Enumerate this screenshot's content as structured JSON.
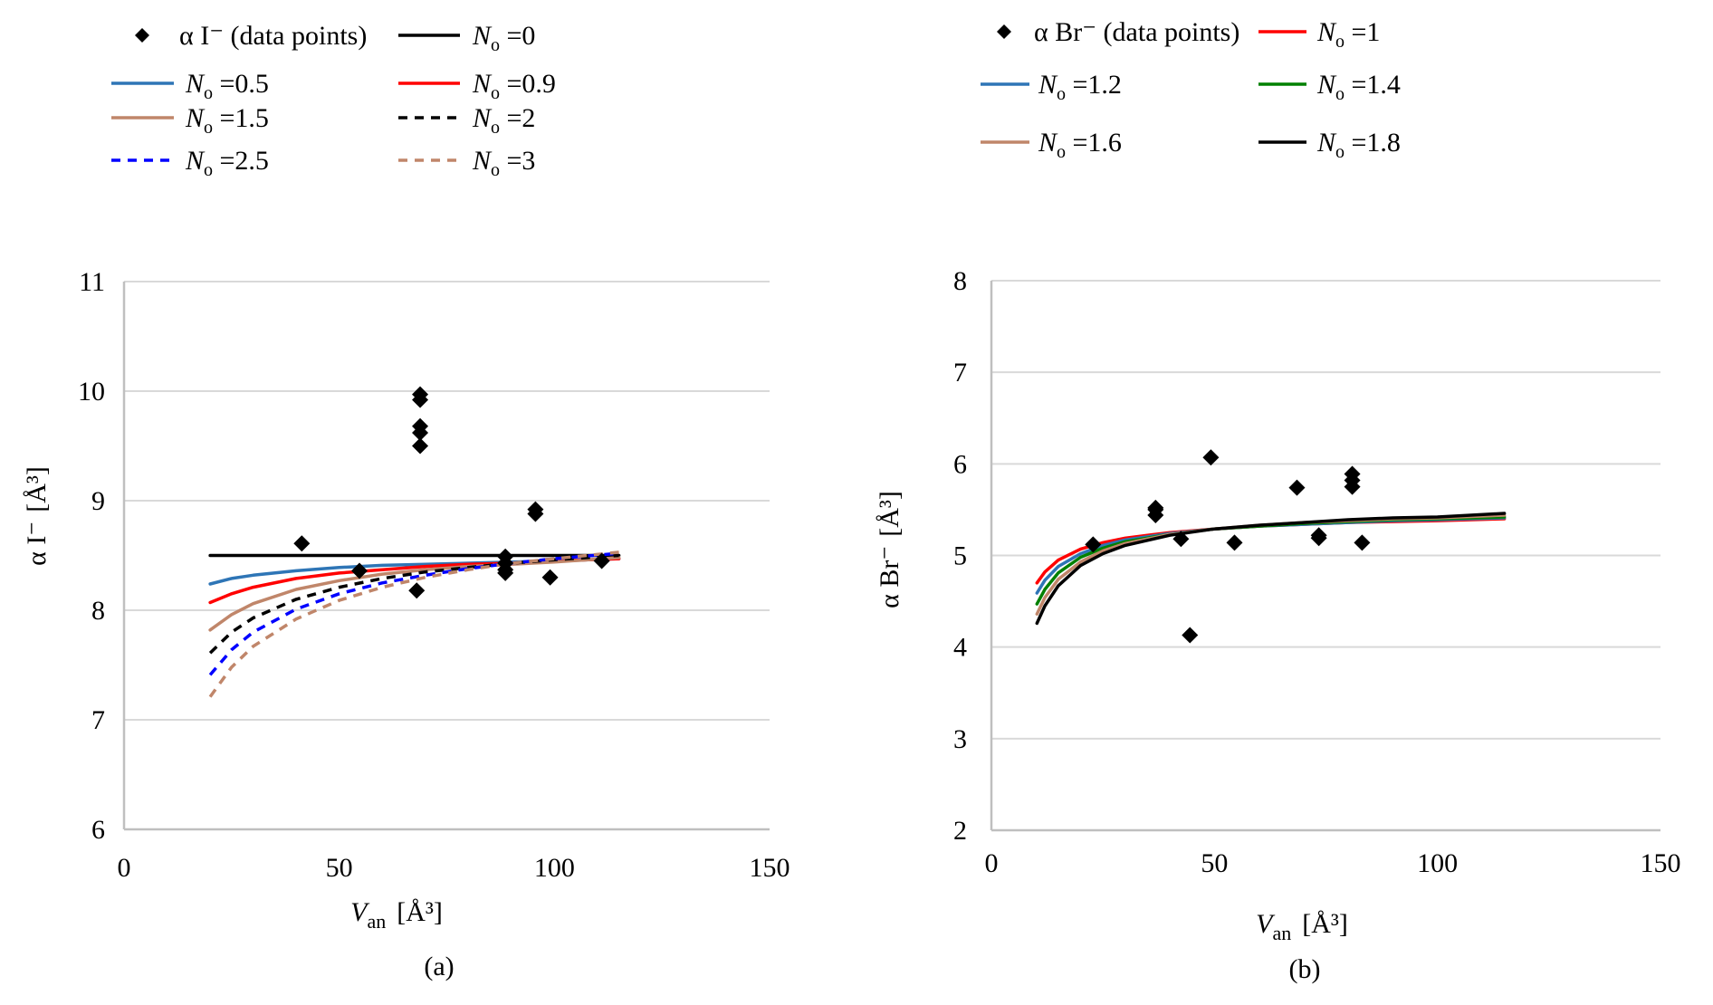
{
  "chart_data": [
    {
      "id": "a",
      "type": "scatter",
      "caption": "(a)",
      "xlabel": {
        "main": "V",
        "sub": "an",
        "unit": "[Å³]"
      },
      "ylabel": {
        "main": "α I⁻",
        "unit": "[Å³]"
      },
      "xlim": [
        0,
        150
      ],
      "ylim": [
        6,
        11
      ],
      "xticks": [
        0,
        50,
        100,
        150
      ],
      "yticks": [
        6,
        7,
        8,
        9,
        10,
        11
      ],
      "grid": true,
      "legend_position": "top",
      "points": {
        "name": "α I⁻ (data points)",
        "marker": "diamond",
        "color": "#000000",
        "x": [
          41.3,
          54.7,
          68.0,
          68.8,
          68.8,
          68.8,
          68.8,
          68.8,
          88.6,
          88.6,
          88.6,
          88.6,
          95.6,
          95.6,
          99.0,
          111.0
        ],
        "y": [
          8.61,
          8.36,
          8.18,
          9.97,
          9.92,
          9.68,
          9.62,
          9.5,
          8.49,
          8.43,
          8.37,
          8.34,
          8.92,
          8.88,
          8.3,
          8.45
        ]
      },
      "series": [
        {
          "name": "No =0",
          "label_n": "N",
          "label_sub": "o",
          "label_val": " =0",
          "color": "#000000",
          "dash": false,
          "x": [
            20,
            115
          ],
          "y": [
            8.5,
            8.5
          ]
        },
        {
          "name": "No =0.5",
          "label_n": "N",
          "label_sub": "o",
          "label_val": " =0.5",
          "color": "#2e75b6",
          "dash": false,
          "x": [
            20,
            25,
            30,
            40,
            50,
            60,
            70,
            80,
            90,
            100,
            115
          ],
          "y": [
            8.24,
            8.29,
            8.32,
            8.36,
            8.39,
            8.41,
            8.42,
            8.43,
            8.44,
            8.45,
            8.47
          ]
        },
        {
          "name": "No =0.9",
          "label_n": "N",
          "label_sub": "o",
          "label_val": " =0.9",
          "color": "#ff0000",
          "dash": false,
          "x": [
            20,
            25,
            30,
            40,
            50,
            60,
            70,
            80,
            90,
            100,
            115
          ],
          "y": [
            8.07,
            8.15,
            8.21,
            8.29,
            8.34,
            8.37,
            8.4,
            8.42,
            8.43,
            8.45,
            8.47
          ]
        },
        {
          "name": "No =1.5",
          "label_n": "N",
          "label_sub": "o",
          "label_val": " =1.5",
          "color": "#c0866a",
          "dash": false,
          "x": [
            20,
            25,
            30,
            40,
            50,
            60,
            70,
            80,
            90,
            100,
            115
          ],
          "y": [
            7.82,
            7.96,
            8.06,
            8.19,
            8.27,
            8.33,
            8.37,
            8.4,
            8.42,
            8.44,
            8.48
          ]
        },
        {
          "name": "No =2",
          "label_n": "N",
          "label_sub": "o",
          "label_val": " =2",
          "color": "#000000",
          "dash": true,
          "x": [
            20,
            25,
            30,
            40,
            50,
            60,
            70,
            80,
            90,
            100,
            115
          ],
          "y": [
            7.61,
            7.8,
            7.93,
            8.1,
            8.21,
            8.29,
            8.35,
            8.39,
            8.43,
            8.46,
            8.5
          ]
        },
        {
          "name": "No =2.5",
          "label_n": "N",
          "label_sub": "o",
          "label_val": " =2.5",
          "color": "#0000ff",
          "dash": true,
          "x": [
            20,
            25,
            30,
            40,
            50,
            60,
            70,
            80,
            90,
            100,
            115
          ],
          "y": [
            7.41,
            7.64,
            7.8,
            8.01,
            8.15,
            8.25,
            8.32,
            8.38,
            8.43,
            8.47,
            8.52
          ]
        },
        {
          "name": "No =3",
          "label_n": "N",
          "label_sub": "o",
          "label_val": " =3",
          "color": "#c0866a",
          "dash": true,
          "x": [
            20,
            25,
            30,
            40,
            50,
            60,
            70,
            80,
            90,
            100,
            115
          ],
          "y": [
            7.21,
            7.48,
            7.67,
            7.92,
            8.09,
            8.21,
            8.3,
            8.37,
            8.43,
            8.47,
            8.53
          ]
        }
      ],
      "legend_order": [
        [
          "points",
          "0"
        ],
        [
          "1",
          "2"
        ],
        [
          "3",
          "4"
        ],
        [
          "5",
          "6"
        ]
      ]
    },
    {
      "id": "b",
      "type": "scatter",
      "caption": "(b)",
      "xlabel": {
        "main": "V",
        "sub": "an",
        "unit": "[Å³]"
      },
      "ylabel": {
        "main": "α Br⁻",
        "unit": "[Å³]"
      },
      "xlim": [
        0,
        150
      ],
      "ylim": [
        2,
        8
      ],
      "xticks": [
        0,
        50,
        100,
        150
      ],
      "yticks": [
        2,
        3,
        4,
        5,
        6,
        7,
        8
      ],
      "grid": true,
      "legend_position": "top",
      "points": {
        "name": "α Br⁻ (data points)",
        "marker": "diamond",
        "color": "#000000",
        "x": [
          22.8,
          36.8,
          36.8,
          36.8,
          42.5,
          44.5,
          49.2,
          54.5,
          68.5,
          73.4,
          73.4,
          80.9,
          80.9,
          80.9,
          83.1
        ],
        "y": [
          5.12,
          5.52,
          5.5,
          5.44,
          5.18,
          4.13,
          6.07,
          5.14,
          5.74,
          5.22,
          5.19,
          5.89,
          5.82,
          5.75,
          5.14
        ]
      },
      "series": [
        {
          "name": "No =1",
          "label_n": "N",
          "label_sub": "o",
          "label_val": " =1",
          "color": "#ff0000",
          "dash": false,
          "x": [
            10.2,
            12,
            15,
            20,
            25,
            30,
            40,
            50,
            60,
            70,
            80,
            90,
            100,
            115
          ],
          "y": [
            4.7,
            4.82,
            4.95,
            5.07,
            5.14,
            5.19,
            5.25,
            5.29,
            5.32,
            5.34,
            5.36,
            5.37,
            5.38,
            5.4
          ]
        },
        {
          "name": "No =1.2",
          "label_n": "N",
          "label_sub": "o",
          "label_val": " =1.2",
          "color": "#2e75b6",
          "dash": false,
          "x": [
            10.2,
            12,
            15,
            20,
            25,
            30,
            40,
            50,
            60,
            70,
            80,
            90,
            100,
            115
          ],
          "y": [
            4.59,
            4.73,
            4.88,
            5.02,
            5.11,
            5.17,
            5.24,
            5.29,
            5.32,
            5.34,
            5.36,
            5.38,
            5.39,
            5.41
          ]
        },
        {
          "name": "No =1.4",
          "label_n": "N",
          "label_sub": "o",
          "label_val": " =1.4",
          "color": "#008000",
          "dash": false,
          "x": [
            10.2,
            12,
            15,
            20,
            25,
            30,
            40,
            50,
            60,
            70,
            80,
            90,
            100,
            115
          ],
          "y": [
            4.47,
            4.63,
            4.81,
            4.98,
            5.08,
            5.15,
            5.23,
            5.29,
            5.32,
            5.35,
            5.37,
            5.39,
            5.4,
            5.42
          ]
        },
        {
          "name": "No =1.6",
          "label_n": "N",
          "label_sub": "o",
          "label_val": " =1.6",
          "color": "#c0866a",
          "dash": false,
          "x": [
            10.2,
            12,
            15,
            20,
            25,
            30,
            40,
            50,
            60,
            70,
            80,
            90,
            100,
            115
          ],
          "y": [
            4.36,
            4.54,
            4.74,
            4.93,
            5.05,
            5.13,
            5.23,
            5.29,
            5.33,
            5.36,
            5.38,
            5.4,
            5.41,
            5.44
          ]
        },
        {
          "name": "No =1.8",
          "label_n": "N",
          "label_sub": "o",
          "label_val": " =1.8",
          "color": "#000000",
          "dash": false,
          "x": [
            10.2,
            12,
            15,
            20,
            25,
            30,
            40,
            50,
            60,
            70,
            80,
            90,
            100,
            115
          ],
          "y": [
            4.26,
            4.45,
            4.67,
            4.89,
            5.02,
            5.11,
            5.22,
            5.29,
            5.33,
            5.36,
            5.39,
            5.41,
            5.42,
            5.46
          ]
        }
      ],
      "legend_order": [
        [
          "points",
          "0"
        ],
        [
          "1",
          "2"
        ],
        [
          "3",
          "4"
        ]
      ]
    }
  ]
}
